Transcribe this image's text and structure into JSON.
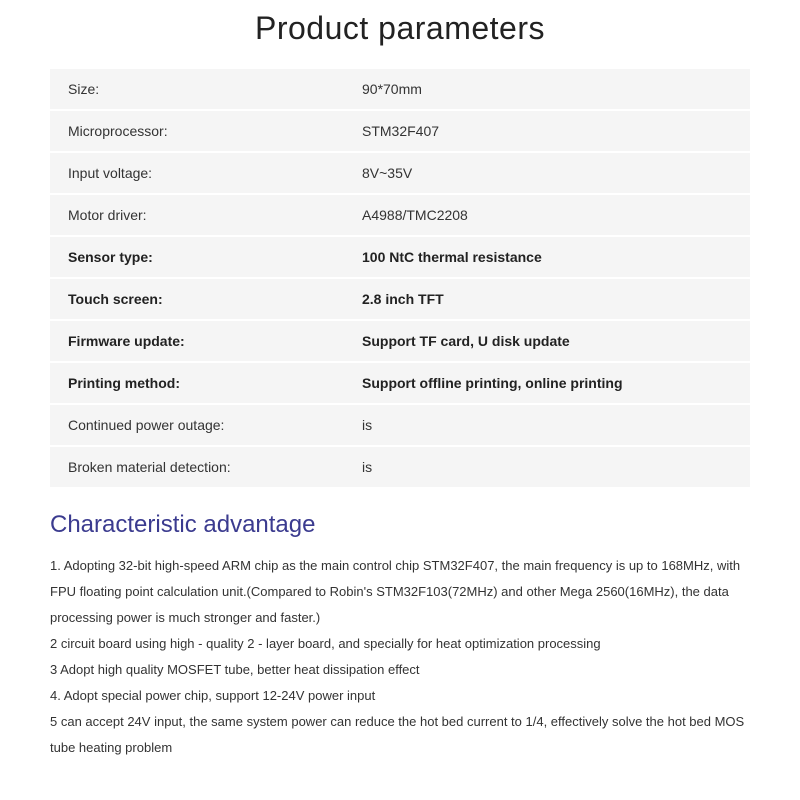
{
  "title": "Product parameters",
  "table": {
    "rows": [
      {
        "label": "Size:",
        "value": "90*70mm",
        "bold": false
      },
      {
        "label": "Microprocessor:",
        "value": "STM32F407",
        "bold": false
      },
      {
        "label": "Input voltage:",
        "value": "8V~35V",
        "bold": false
      },
      {
        "label": "Motor driver:",
        "value": "A4988/TMC2208",
        "bold": false
      },
      {
        "label": "Sensor type:",
        "value": "100 NtC thermal resistance",
        "bold": true
      },
      {
        "label": "Touch screen:",
        "value": "2.8 inch TFT",
        "bold": true
      },
      {
        "label": "Firmware update:",
        "value": "Support TF card, U disk update",
        "bold": true
      },
      {
        "label": "Printing method:",
        "value": "Support offline printing, online printing",
        "bold": true
      },
      {
        "label": "Continued power outage:",
        "value": "is",
        "bold": false
      },
      {
        "label": "Broken material detection:",
        "value": "is",
        "bold": false
      }
    ]
  },
  "section2": {
    "title": "Characteristic advantage",
    "title_color": "#3b3b8f",
    "items": [
      "1. Adopting 32-bit high-speed ARM chip as the main control chip STM32F407, the main frequency is up to 168MHz, with FPU floating point calculation unit.(Compared to Robin's STM32F103(72MHz) and other Mega 2560(16MHz), the data processing power is much stronger and faster.)",
      "2 circuit board using high - quality 2 - layer board, and specially for heat optimization processing",
      "3 Adopt high quality MOSFET tube, better heat dissipation effect",
      "4. Adopt special power chip, support 12-24V power input",
      "5 can accept 24V input, the same system power can reduce the hot bed current to 1/4, effectively solve the hot bed MOS tube heating problem"
    ]
  },
  "colors": {
    "row_bg": "#f5f5f5",
    "text": "#333333",
    "section_title": "#3b3b8f"
  }
}
